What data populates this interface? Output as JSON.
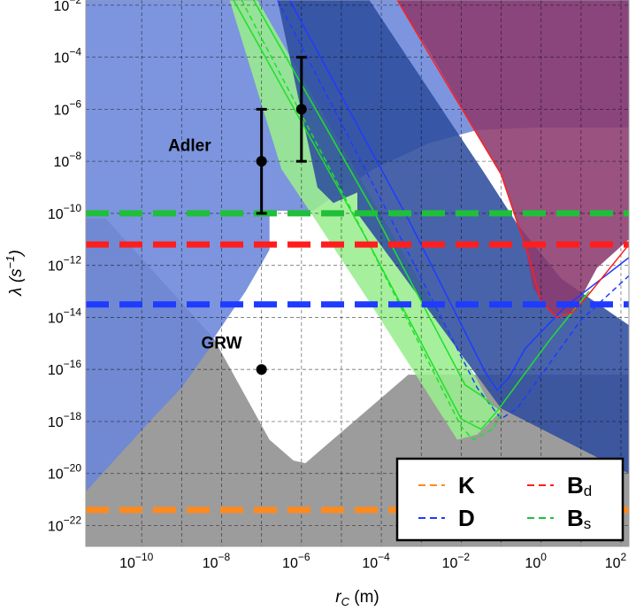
{
  "chart_data": {
    "type": "area",
    "xlabel": {
      "base": "r",
      "sub": "C",
      "unit": " (m)"
    },
    "ylabel": {
      "text": "λ (s",
      "sup": "−1",
      "close": ")"
    },
    "x_log10_range": [
      -11.4,
      2.2
    ],
    "y_log10_range": [
      -22.8,
      -1.8
    ],
    "x_tick_exponents": [
      -10,
      -8,
      -6,
      -4,
      -2,
      0,
      2
    ],
    "y_tick_exponents": [
      -22,
      -20,
      -18,
      -16,
      -14,
      -12,
      -10,
      -8,
      -6,
      -4,
      -2
    ],
    "tick_base": "10",
    "x_grid_exponents": [
      -10,
      -9,
      -8,
      -7,
      -6,
      -5,
      -4,
      -3,
      -2,
      -1,
      0,
      1,
      2
    ],
    "y_grid_exponents": [
      -22,
      -20,
      -18,
      -16,
      -14,
      -12,
      -10,
      -8,
      -6,
      -4,
      -2
    ],
    "grid": true,
    "legend_position": "bottom-right",
    "regions": [
      {
        "name": "gray-excluded-lower",
        "color": "#8e8e8e",
        "points": [
          [
            -11.4,
            -10.2
          ],
          [
            -10.9,
            -10.2
          ],
          [
            -8.2,
            -14.8
          ],
          [
            -6.8,
            -18.7
          ],
          [
            -6.2,
            -19.5
          ],
          [
            -5.9,
            -19.6
          ],
          [
            -3.4,
            -16.2
          ],
          [
            2.2,
            -16.2
          ],
          [
            2.2,
            -22.8
          ],
          [
            -11.4,
            -22.8
          ]
        ]
      },
      {
        "name": "blue-excluded-upper",
        "color": "#6a86da",
        "points": [
          [
            -11.4,
            -1.8
          ],
          [
            -11.4,
            -20.7
          ],
          [
            -9.8,
            -18.0
          ],
          [
            -9.0,
            -16.7
          ],
          [
            -8.4,
            -15.4
          ],
          [
            -7.5,
            -13.4
          ],
          [
            -6.8,
            -11.4
          ],
          [
            -5.9,
            -10.1
          ],
          [
            -4.2,
            -8.3
          ],
          [
            -2.8,
            -7.3
          ],
          [
            -1.6,
            -6.8
          ],
          [
            -0.1,
            -6.7
          ],
          [
            2.2,
            -6.7
          ],
          [
            2.2,
            -1.8
          ]
        ]
      },
      {
        "name": "white-allowed",
        "color": "#ffffff",
        "points": [
          [
            -6.8,
            -9.9
          ],
          [
            -4.5,
            -9.9
          ],
          [
            -2.0,
            -14.4
          ],
          [
            -3.4,
            -16.3
          ],
          [
            -5.9,
            -19.6
          ],
          [
            -6.2,
            -19.5
          ],
          [
            -6.8,
            -18.7
          ],
          [
            -8.2,
            -14.8
          ],
          [
            -7.4,
            -13.0
          ],
          [
            -6.8,
            -11.4
          ]
        ]
      },
      {
        "name": "green-band",
        "color": "#9aed8e",
        "points": [
          [
            -7.8,
            -1.8
          ],
          [
            -7.1,
            -1.8
          ],
          [
            -4.1,
            -9.8
          ],
          [
            -1.6,
            -16.4
          ],
          [
            -1.3,
            -17.3
          ],
          [
            -1.0,
            -17.6
          ],
          [
            -1.6,
            -18.5
          ],
          [
            -2.1,
            -18.7
          ],
          [
            -4.3,
            -13.4
          ],
          [
            -5.8,
            -9.9
          ],
          [
            -6.5,
            -8.3
          ]
        ]
      },
      {
        "name": "navy-strip",
        "color": "#2f4d9e",
        "points": [
          [
            -6.6,
            -1.8
          ],
          [
            -4.3,
            -1.8
          ],
          [
            -1.4,
            -8.5
          ],
          [
            -0.6,
            -10.4
          ],
          [
            0.5,
            -12.5
          ],
          [
            2.2,
            -14.3
          ],
          [
            2.2,
            -20.0
          ],
          [
            -1.0,
            -17.5
          ],
          [
            -4.6,
            -10.0
          ],
          [
            -4.6,
            -9.2
          ],
          [
            -5.2,
            -9.6
          ],
          [
            -5.6,
            -9.0
          ]
        ]
      },
      {
        "name": "magenta-excluded",
        "color": "#8c3a6e",
        "points": [
          [
            -6.9,
            -1.8
          ],
          [
            -3.6,
            -1.8
          ],
          [
            -2.8,
            -3.8
          ],
          [
            -1.0,
            -8.5
          ],
          [
            -0.4,
            -11.2
          ],
          [
            -0.2,
            -12.9
          ],
          [
            0.3,
            -13.9
          ],
          [
            0.8,
            -13.8
          ],
          [
            1.4,
            -12.1
          ],
          [
            2.2,
            -11.0
          ],
          [
            2.2,
            -1.8
          ]
        ]
      }
    ],
    "series": [
      {
        "name": "K",
        "color": "#ff8a1e",
        "dashed": true,
        "y": -21.4
      },
      {
        "name": "D",
        "color": "#1f3bff",
        "dashed": true,
        "y": -13.5
      },
      {
        "name": "B",
        "sub": "d",
        "color": "#ff1e1e",
        "dashed": true,
        "y": -11.2
      },
      {
        "name": "B",
        "sub": "s",
        "color": "#1fbf3a",
        "dashed": true,
        "y": -10.0
      }
    ],
    "curves": [
      {
        "name": "blue-solid-1",
        "color": "#1f3bff",
        "width": 1.5,
        "points": [
          [
            -6.3,
            -1.8
          ],
          [
            -3.3,
            -10.3
          ],
          [
            -1.4,
            -16.1
          ],
          [
            -1.1,
            -16.8
          ],
          [
            -0.8,
            -16.3
          ],
          [
            -0.4,
            -15.2
          ],
          [
            0.6,
            -13.6
          ],
          [
            2.2,
            -11.7
          ]
        ]
      },
      {
        "name": "blue-dashed",
        "color": "#1f3bff",
        "width": 1.5,
        "dash": "6,4",
        "points": [
          [
            -6.6,
            -1.8
          ],
          [
            -3.9,
            -9.8
          ],
          [
            -1.6,
            -16.7
          ],
          [
            -1.0,
            -17.9
          ],
          [
            -0.6,
            -17.5
          ],
          [
            1.0,
            -14.1
          ],
          [
            2.2,
            -12.4
          ]
        ]
      },
      {
        "name": "green-solid-1",
        "color": "#1fe02a",
        "width": 1.5,
        "points": [
          [
            -7.2,
            -1.8
          ],
          [
            -4.2,
            -9.9
          ],
          [
            -1.9,
            -16.6
          ],
          [
            -1.5,
            -17.0
          ],
          [
            -1.2,
            -17.4
          ]
        ]
      },
      {
        "name": "green-solid-2",
        "color": "#1fe02a",
        "width": 1.5,
        "points": [
          [
            -7.7,
            -1.8
          ],
          [
            -4.4,
            -10.9
          ],
          [
            -2.0,
            -17.9
          ],
          [
            -1.5,
            -18.3
          ],
          [
            -1.1,
            -17.6
          ],
          [
            0.2,
            -14.9
          ],
          [
            1.2,
            -13.0
          ]
        ]
      },
      {
        "name": "green-dashed",
        "color": "#1fe02a",
        "width": 1.5,
        "dash": "6,4",
        "points": [
          [
            -7.5,
            -1.8
          ],
          [
            -4.5,
            -10.6
          ],
          [
            -2.0,
            -18.2
          ],
          [
            -1.7,
            -18.7
          ],
          [
            -1.2,
            -18.3
          ],
          [
            -1.0,
            -17.7
          ]
        ]
      },
      {
        "name": "red-solid",
        "color": "#ff1e1e",
        "width": 1.5,
        "points": [
          [
            -3.6,
            -1.8
          ],
          [
            -2.6,
            -4.4
          ],
          [
            -1.0,
            -8.5
          ],
          [
            -0.3,
            -11.7
          ],
          [
            0.0,
            -13.4
          ],
          [
            0.4,
            -14.0
          ],
          [
            0.8,
            -13.8
          ],
          [
            1.2,
            -13.1
          ],
          [
            2.2,
            -11.2
          ]
        ]
      }
    ],
    "annotations": [
      {
        "name": "Adler",
        "label": "Adler",
        "label_x": -8.8,
        "label_y": -7.6,
        "points": [
          {
            "x": -7,
            "y": -8,
            "err_low": -10,
            "err_high": -6
          },
          {
            "x": -6,
            "y": -6,
            "err_low": -8,
            "err_high": -4
          }
        ]
      },
      {
        "name": "GRW",
        "label": "GRW",
        "label_x": -8.0,
        "label_y": -15.2,
        "points": [
          {
            "x": -7,
            "y": -16
          }
        ]
      }
    ]
  }
}
